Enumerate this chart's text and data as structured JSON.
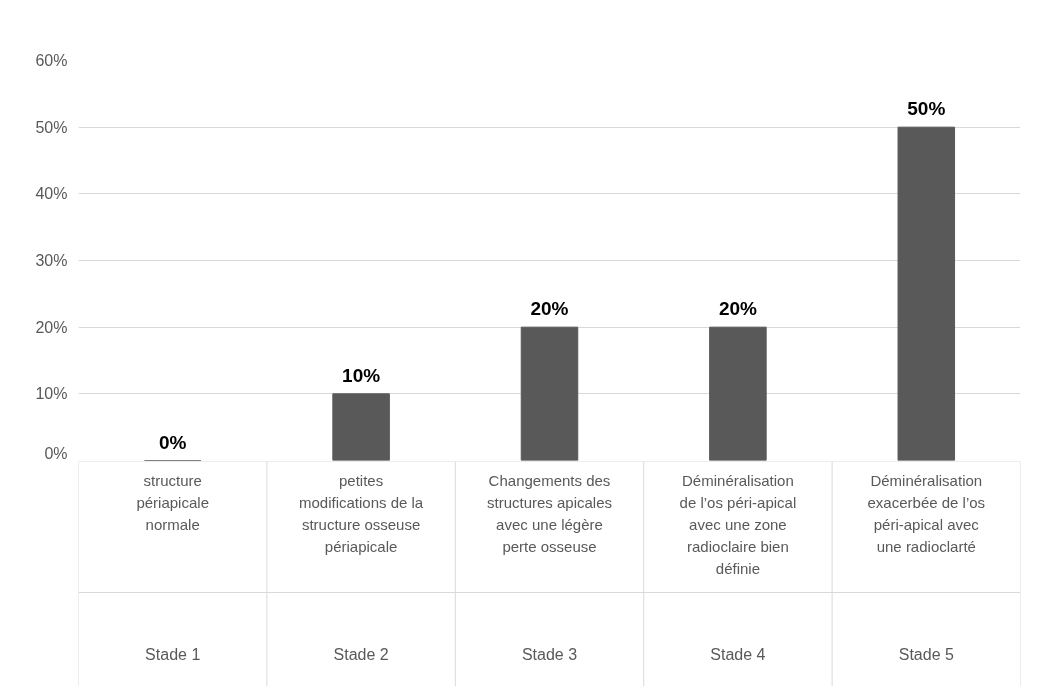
{
  "chart_data": {
    "type": "bar",
    "categories": [
      "structure\npériapicale\nnormale\nStade 1",
      "petites\nmodifications de la\nstructure osseuse\npériapicale\nStade 2",
      "Changements des\nstructures apicales\navec une légère\nperte osseuse\nStade 3",
      "Déminéralisation\nde l’os péri-apical\navec une zone\nradioclaire bien\ndéfinie\nStade 4",
      "Déminéralisation\nexacerbée de l’os\npéri-apical avec\nune radioclarté\nStade 5"
    ],
    "values": [
      0,
      10,
      20,
      20,
      50
    ],
    "value_labels": [
      "0%",
      "10%",
      "20%",
      "20%",
      "50%"
    ],
    "color": "#595959",
    "ylim": [
      0,
      60
    ],
    "yticks": [
      {
        "value": 0,
        "label": "0%"
      },
      {
        "value": 10,
        "label": "10%"
      },
      {
        "value": 20,
        "label": "20%"
      },
      {
        "value": 30,
        "label": "30%"
      },
      {
        "value": 40,
        "label": "40%"
      },
      {
        "value": 50,
        "label": "50%"
      },
      {
        "value": 60,
        "label": "60%"
      }
    ],
    "grid": "y"
  }
}
